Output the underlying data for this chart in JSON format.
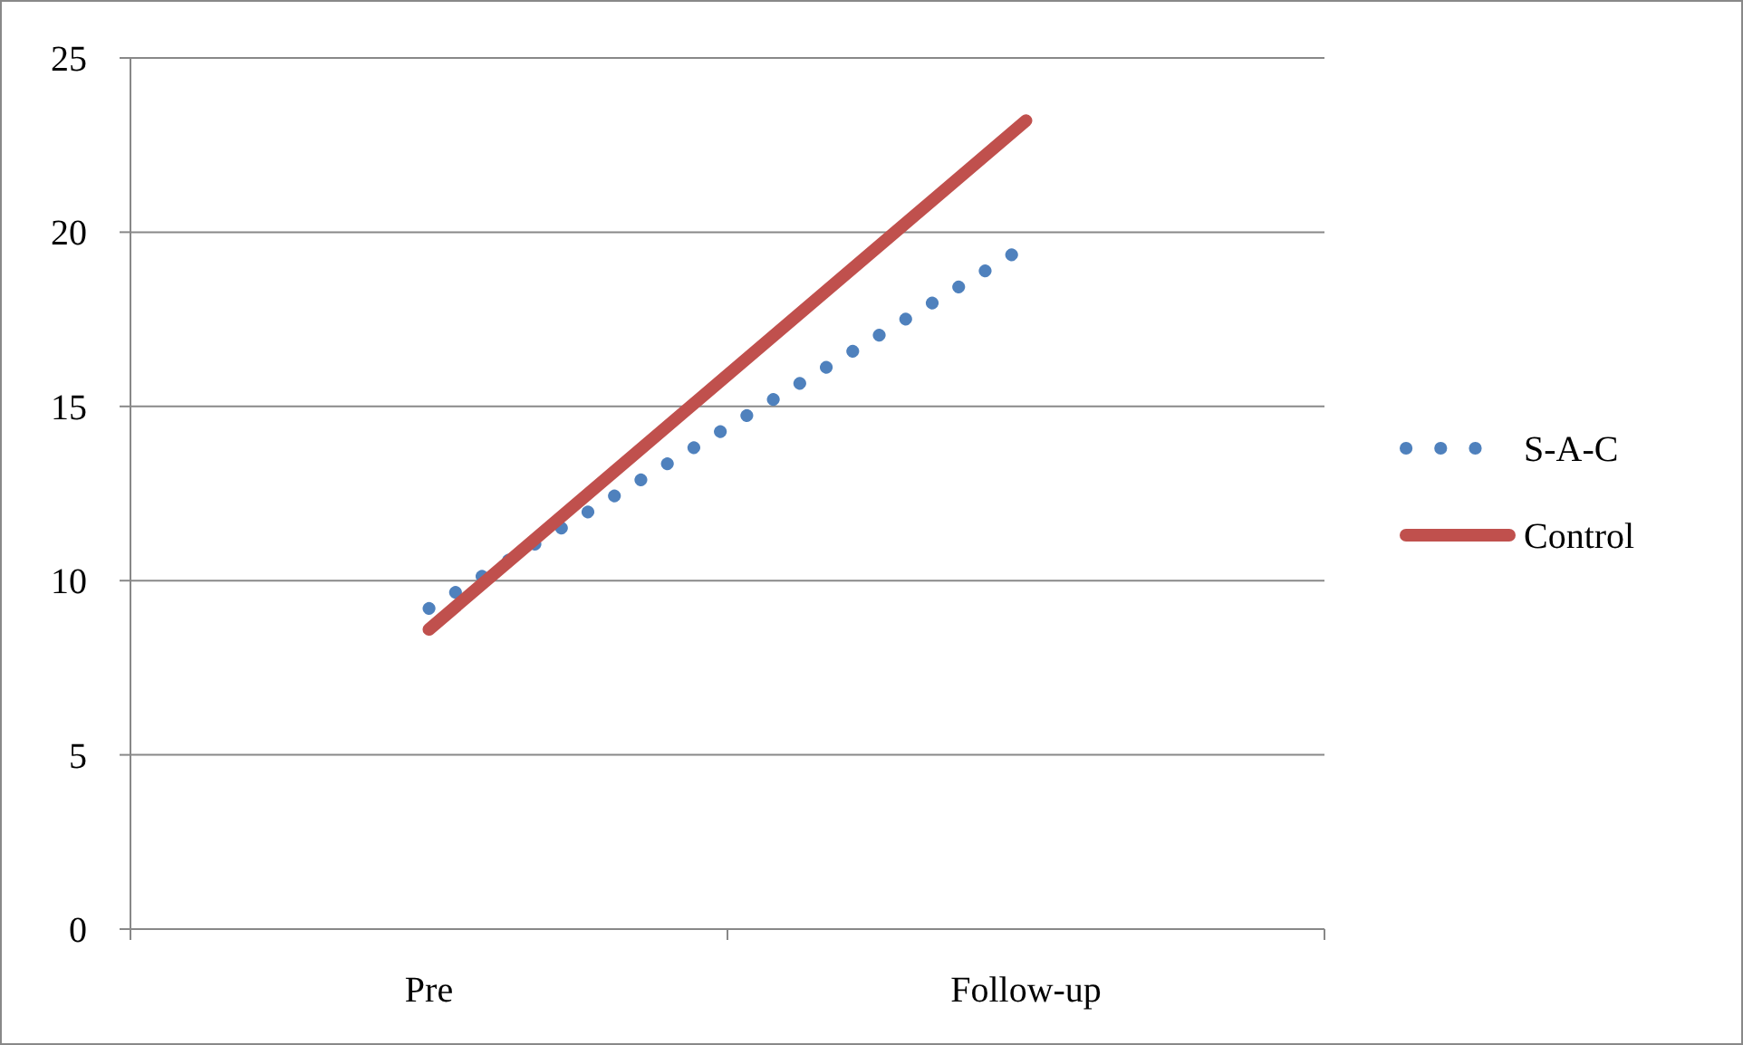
{
  "chart_data": {
    "type": "line",
    "categories": [
      "Pre",
      "Follow-up"
    ],
    "series": [
      {
        "name": "S-A-C",
        "color": "#4f81bd",
        "values": [
          9.2,
          19.6
        ],
        "line_style": "dotted"
      },
      {
        "name": "Control",
        "color": "#c0504d",
        "values": [
          8.6,
          23.2
        ],
        "line_style": "solid"
      }
    ],
    "ylim": [
      0,
      25
    ],
    "yticks": [
      0,
      5,
      10,
      15,
      20,
      25
    ],
    "grid": "y",
    "legend": "right",
    "marker": "none"
  }
}
